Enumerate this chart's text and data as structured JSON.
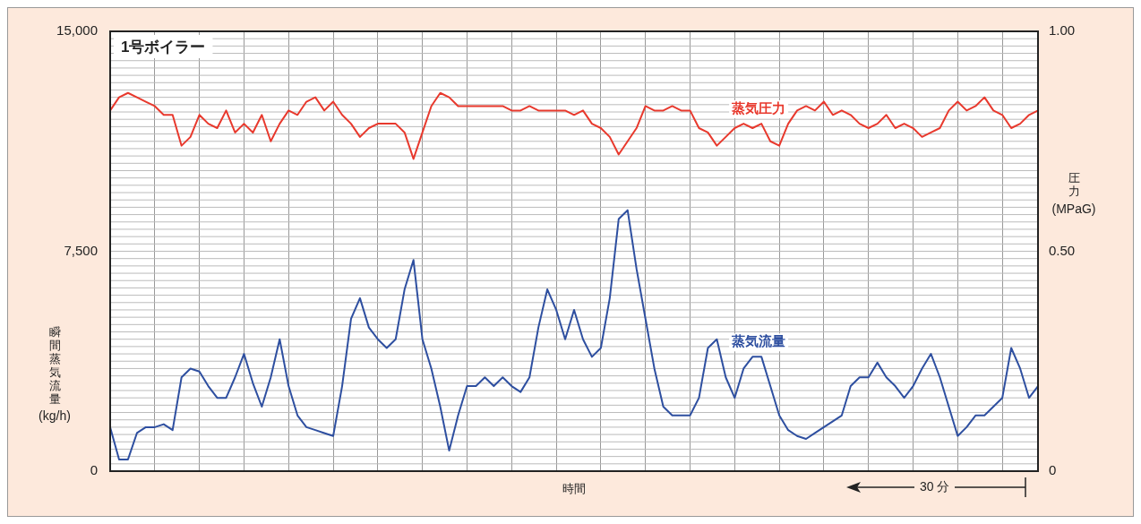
{
  "chart_data": {
    "type": "line",
    "title": "1号ボイラー",
    "xlabel": "時間",
    "ylabel": "瞬間蒸気流量(kg/h)",
    "y2label": "圧力(MPaG)",
    "categories": [
      null,
      null,
      null,
      null,
      null,
      null,
      null,
      null,
      null,
      null,
      null,
      null,
      null,
      null,
      null,
      null,
      null,
      null,
      null,
      null,
      null,
      null,
      null,
      null,
      null,
      null,
      null,
      null,
      null,
      null,
      null,
      null,
      null,
      null,
      null,
      null,
      null,
      null,
      null,
      null,
      null,
      null,
      null,
      null,
      null,
      null,
      null,
      null,
      null,
      null,
      null,
      null,
      null,
      null,
      null,
      null,
      null,
      null,
      null,
      null,
      null,
      null,
      null,
      null,
      null,
      null,
      null,
      null,
      null,
      null,
      null,
      null,
      null,
      null,
      null,
      null,
      null,
      null,
      null,
      null,
      null,
      null,
      null,
      null,
      null,
      null,
      null,
      null,
      null,
      null,
      null,
      null,
      null,
      null,
      null,
      null,
      null,
      null,
      null,
      null,
      null,
      null,
      null,
      null,
      null
    ],
    "series": [
      {
        "name": "蒸気圧力",
        "color": "#e8392d",
        "axis": "y2",
        "values": [
          0.82,
          0.85,
          0.86,
          0.85,
          0.84,
          0.83,
          0.81,
          0.81,
          0.74,
          0.76,
          0.81,
          0.79,
          0.78,
          0.82,
          0.77,
          0.79,
          0.77,
          0.81,
          0.75,
          0.79,
          0.82,
          0.81,
          0.84,
          0.85,
          0.82,
          0.84,
          0.81,
          0.79,
          0.76,
          0.78,
          0.79,
          0.79,
          0.79,
          0.77,
          0.71,
          0.77,
          0.83,
          0.86,
          0.85,
          0.83,
          0.83,
          0.83,
          0.83,
          0.83,
          0.83,
          0.82,
          0.82,
          0.83,
          0.82,
          0.82,
          0.82,
          0.82,
          0.81,
          0.82,
          0.79,
          0.78,
          0.76,
          0.72,
          0.75,
          0.78,
          0.83,
          0.82,
          0.82,
          0.83,
          0.82,
          0.82,
          0.78,
          0.77,
          0.74,
          0.76,
          0.78,
          0.79,
          0.78,
          0.79,
          0.75,
          0.74,
          0.79,
          0.82,
          0.83,
          0.82,
          0.84,
          0.81,
          0.82,
          0.81,
          0.79,
          0.78,
          0.79,
          0.81,
          0.78,
          0.79,
          0.78,
          0.76,
          0.77,
          0.78,
          0.82,
          0.84,
          0.82,
          0.83,
          0.85,
          0.82,
          0.81,
          0.78,
          0.79,
          0.81,
          0.82
        ]
      },
      {
        "name": "蒸気流量",
        "color": "#2e4fa0",
        "axis": "y",
        "values": [
          1500,
          400,
          400,
          1300,
          1500,
          1500,
          1600,
          1400,
          3200,
          3500,
          3400,
          2900,
          2500,
          2500,
          3200,
          4000,
          3000,
          2200,
          3200,
          4500,
          2900,
          1900,
          1500,
          1400,
          1300,
          1200,
          2900,
          5200,
          5900,
          4900,
          4500,
          4200,
          4500,
          6200,
          7200,
          4500,
          3500,
          2200,
          700,
          1900,
          2900,
          2900,
          3200,
          2900,
          3200,
          2900,
          2700,
          3200,
          4900,
          6200,
          5500,
          4500,
          5500,
          4500,
          3900,
          4200,
          5900,
          8600,
          8900,
          6900,
          5200,
          3500,
          2200,
          1900,
          1900,
          1900,
          2500,
          4200,
          4500,
          3200,
          2500,
          3500,
          3900,
          3900,
          2900,
          1900,
          1400,
          1200,
          1100,
          1300,
          1500,
          1700,
          1900,
          2900,
          3200,
          3200,
          3700,
          3200,
          2900,
          2500,
          2900,
          3500,
          4000,
          3200,
          2200,
          1200,
          1500,
          1900,
          1900,
          2200,
          2500,
          4200,
          3500,
          2500,
          2900
        ]
      }
    ],
    "ylim": [
      0,
      15000
    ],
    "yticks": [
      0,
      {
        "value": 7500,
        "label": "7,500"
      },
      {
        "value": 15000,
        "label": "15,000"
      }
    ],
    "y2lim": [
      0,
      1
    ],
    "y2ticks": [
      0,
      {
        "value": 0.5,
        "label": "0.50"
      },
      {
        "value": 1,
        "label": "1.00"
      }
    ],
    "grid": true,
    "legend": false,
    "marker": "none",
    "line_style": "solid",
    "annotations": [
      "30 分"
    ]
  }
}
